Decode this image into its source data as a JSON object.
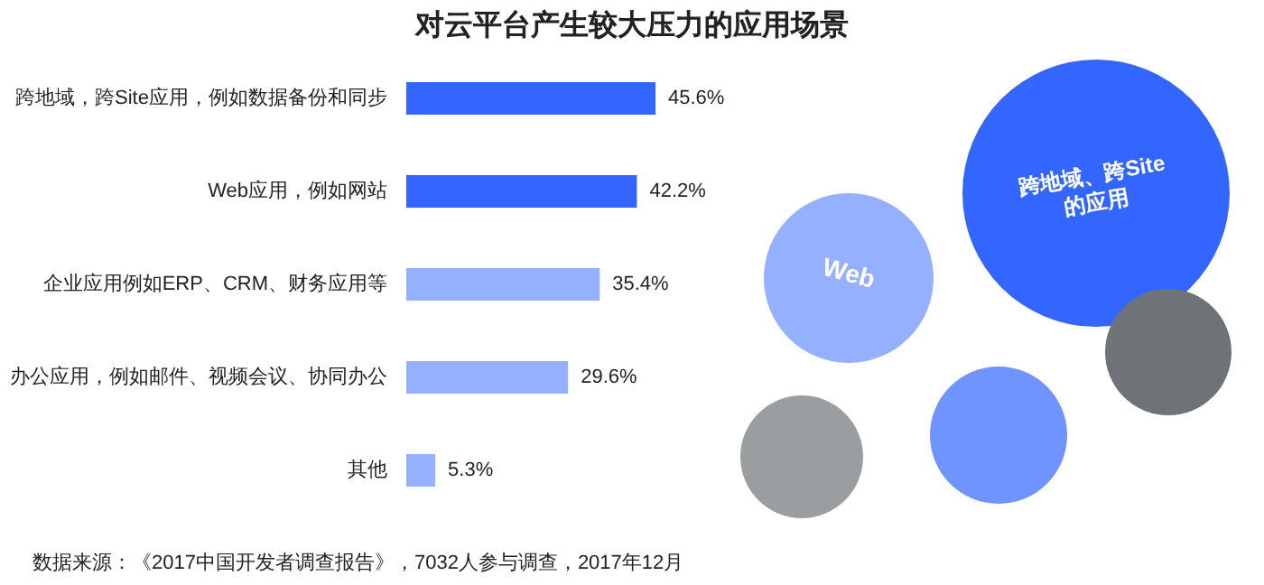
{
  "chart_data": {
    "type": "bar",
    "orientation": "horizontal",
    "title": "对云平台产生较大压力的应用场景",
    "categories": [
      "跨地域，跨Site应用，例如数据备份和同步",
      "Web应用，例如网站",
      "企业应用例如ERP、CRM、财务应用等",
      "办公应用，例如邮件、视频会议、协同办公",
      "其他"
    ],
    "values": [
      45.6,
      42.2,
      35.4,
      29.6,
      5.3
    ],
    "colors": [
      "#3366ff",
      "#3366ff",
      "#94b0ff",
      "#94b0ff",
      "#94b0ff"
    ],
    "value_labels": [
      "45.6%",
      "42.2%",
      "35.4%",
      "29.6%",
      "5.3%"
    ],
    "annotations": [
      "跨地域、跨Site的应用",
      "Web",
      "数据来源：《2017中国开发者调查报告》，7032人参与调查，2017年12月"
    ]
  }
}
